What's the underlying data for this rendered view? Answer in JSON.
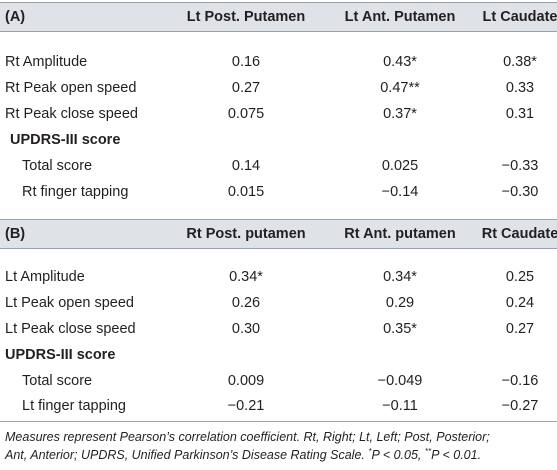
{
  "panel_a": {
    "label": "(A)",
    "col1": "Lt Post. Putamen",
    "col2": "Lt Ant. Putamen",
    "col3": "Lt Caudate",
    "rows": [
      {
        "label": "Rt Amplitude",
        "v1": "0.16",
        "v2": "0.43*",
        "v3": "0.38*"
      },
      {
        "label": "Rt Peak open speed",
        "v1": "0.27",
        "v2": "0.47**",
        "v3": "0.33"
      },
      {
        "label": "Rt Peak close speed",
        "v1": "0.075",
        "v2": "0.37*",
        "v3": "0.31"
      }
    ],
    "subheading": "UPDRS-III score",
    "sub_rows": [
      {
        "label": "Total score",
        "v1": "0.14",
        "v2": "0.025",
        "v3": "−0.33"
      },
      {
        "label": "Rt finger tapping",
        "v1": "0.015",
        "v2": "−0.14",
        "v3": "−0.30"
      }
    ]
  },
  "panel_b": {
    "label": "(B)",
    "col1": "Rt Post. putamen",
    "col2": "Rt Ant. putamen",
    "col3": "Rt Caudate",
    "rows": [
      {
        "label": "Lt Amplitude",
        "v1": "0.34*",
        "v2": "0.34*",
        "v3": "0.25"
      },
      {
        "label": "Lt Peak open speed",
        "v1": "0.26",
        "v2": "0.29",
        "v3": "0.24"
      },
      {
        "label": "Lt Peak close speed",
        "v1": "0.30",
        "v2": "0.35*",
        "v3": "0.27"
      }
    ],
    "subheading": "UPDRS-III score",
    "sub_rows": [
      {
        "label": "Total score",
        "v1": "0.009",
        "v2": "−0.049",
        "v3": "−0.16"
      },
      {
        "label": "Lt finger tapping",
        "v1": "−0.21",
        "v2": "−0.11",
        "v3": "−0.27"
      }
    ]
  },
  "footnote": {
    "line1": "Measures represent Pearson’s correlation coefficient. Rt, Right; Lt, Left; Post, Posterior;",
    "line2a": "Ant, Anterior; UPDRS, Unified Parkinson’s Disease Rating Scale. ",
    "star1": "*",
    "line2b": "P < 0.05, ",
    "star2": "**",
    "line2c": "P < 0.01."
  }
}
